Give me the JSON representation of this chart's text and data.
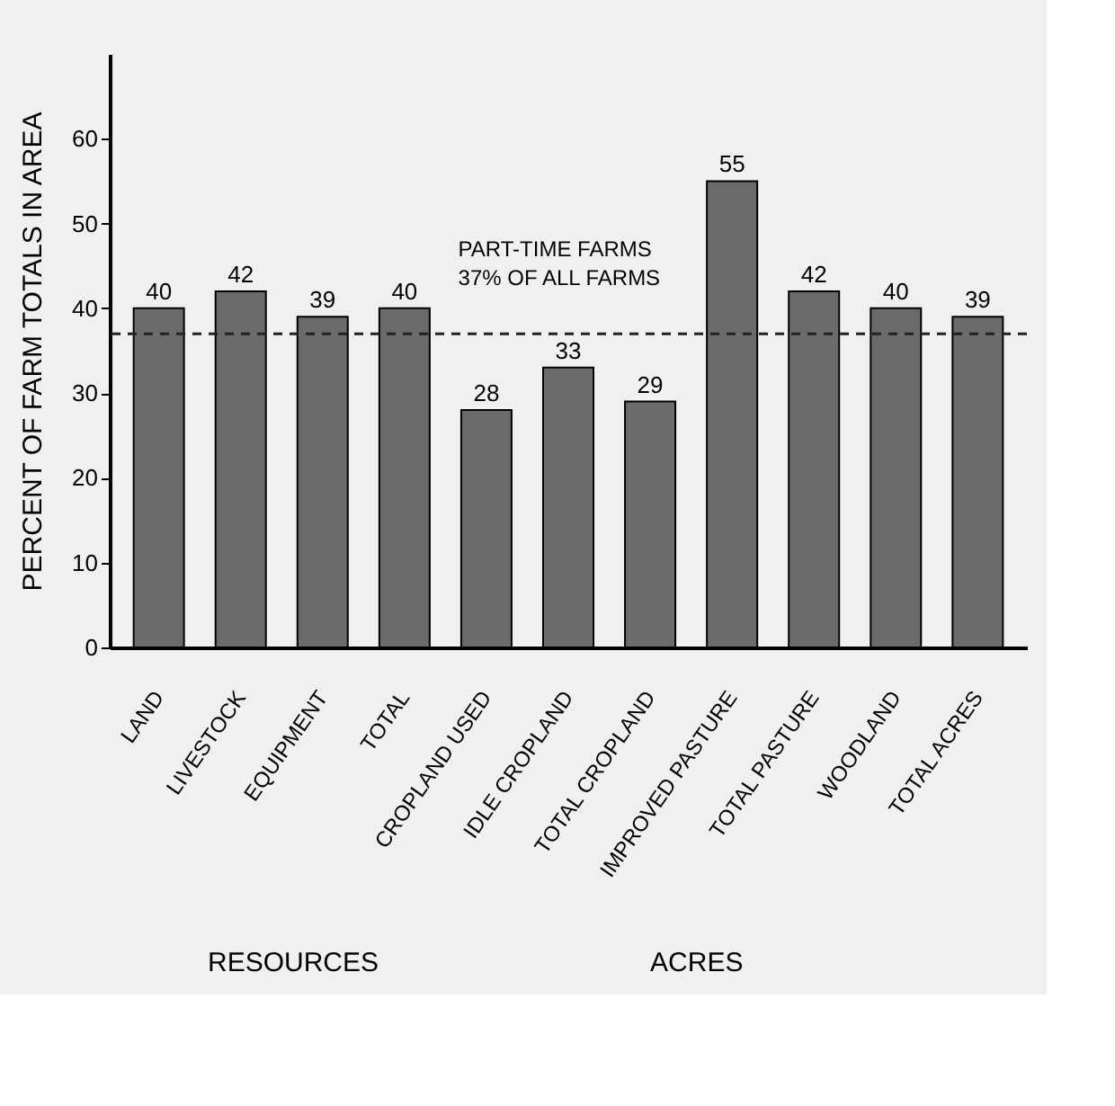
{
  "chart_data": {
    "type": "bar",
    "ylabel": "PERCENT OF FARM TOTALS IN AREA",
    "categories": [
      "LAND",
      "LIVESTOCK",
      "EQUIPMENT",
      "TOTAL",
      "CROPLAND USED",
      "IDLE  CROPLAND",
      "TOTAL CROPLAND",
      "IMPROVED PASTURE",
      "TOTAL PASTURE",
      "WOODLAND",
      "TOTAL ACRES"
    ],
    "values": [
      40,
      42,
      39,
      40,
      28,
      33,
      29,
      55,
      42,
      40,
      39
    ],
    "color": "#6b6b6b",
    "ylim": [
      0,
      70
    ],
    "yticks": [
      0,
      10,
      20,
      30,
      40,
      50,
      60
    ],
    "data_labels": true,
    "grid": false,
    "ref_lines": [
      {
        "axis": "y",
        "value": 37,
        "label": "PART-TIME FARMS\n37% OF ALL FARMS",
        "line_style": "dashed",
        "color": "#222222"
      }
    ],
    "annotations": [
      "RESOURCES",
      "ACRES"
    ]
  }
}
